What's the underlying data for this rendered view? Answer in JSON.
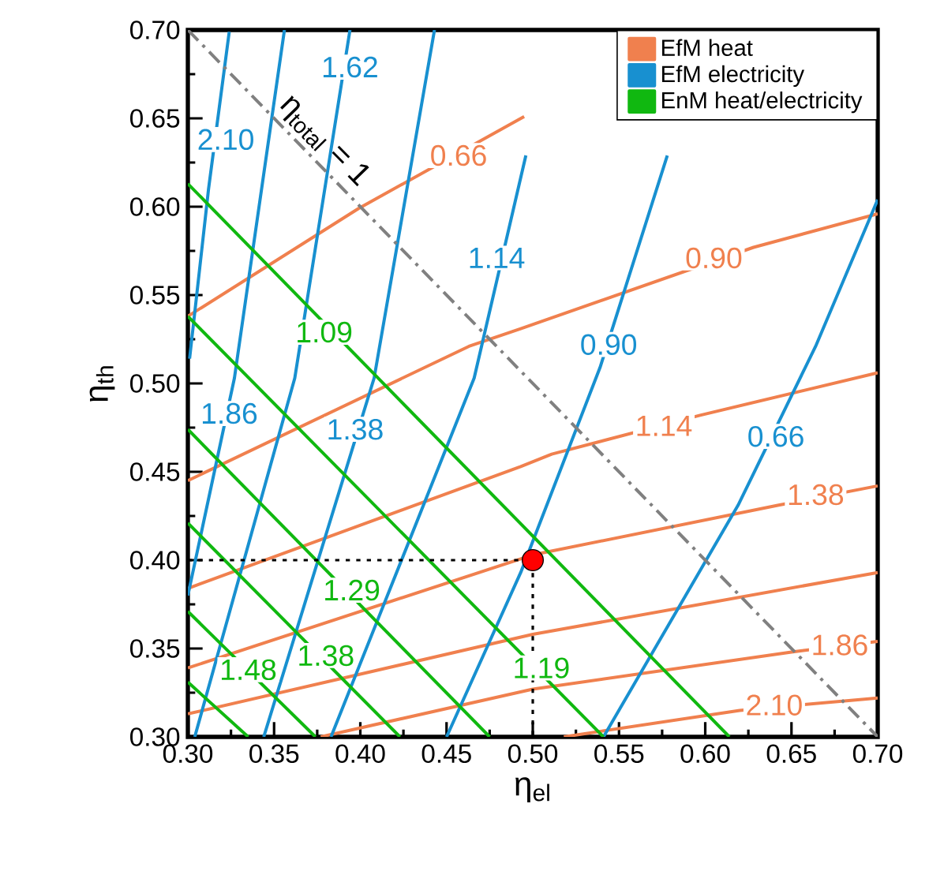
{
  "chart_data": {
    "type": "line",
    "xlabel": "η$_{el}$",
    "ylabel": "η$_{th}$",
    "xlim": [
      0.3,
      0.7
    ],
    "ylim": [
      0.3,
      0.7
    ],
    "xticks": [
      {
        "value": 0.3,
        "label": "0.30"
      },
      {
        "value": 0.35,
        "label": "0.35"
      },
      {
        "value": 0.4,
        "label": "0.40"
      },
      {
        "value": 0.45,
        "label": "0.45"
      },
      {
        "value": 0.5,
        "label": "0.50"
      },
      {
        "value": 0.55,
        "label": "0.55"
      },
      {
        "value": 0.6,
        "label": "0.60"
      },
      {
        "value": 0.65,
        "label": "0.65"
      },
      {
        "value": 0.7,
        "label": "0.70"
      }
    ],
    "yticks": [
      {
        "value": 0.3,
        "label": "0.30"
      },
      {
        "value": 0.35,
        "label": "0.35"
      },
      {
        "value": 0.4,
        "label": "0.40"
      },
      {
        "value": 0.45,
        "label": "0.45"
      },
      {
        "value": 0.5,
        "label": "0.50"
      },
      {
        "value": 0.55,
        "label": "0.55"
      },
      {
        "value": 0.6,
        "label": "0.60"
      },
      {
        "value": 0.65,
        "label": "0.65"
      },
      {
        "value": 0.7,
        "label": "0.70"
      }
    ],
    "legend": "top right",
    "marker": "none",
    "line_style": "solid",
    "series": [
      {
        "name": "EfM heat",
        "color": "#f0804e",
        "x": [
          0.3,
          0.399,
          0.495
        ],
        "values": [
          0.538,
          0.599,
          0.651
        ]
      },
      {
        "color": "#f0804e",
        "x": [
          0.3,
          0.463,
          0.493,
          0.628,
          0.7
        ],
        "values": [
          0.445,
          0.521,
          0.531,
          0.577,
          0.596
        ]
      },
      {
        "color": "#f0804e",
        "x": [
          0.3,
          0.493,
          0.511,
          0.597,
          0.7
        ],
        "values": [
          0.384,
          0.453,
          0.46,
          0.482,
          0.506
        ]
      },
      {
        "color": "#f0804e",
        "x": [
          0.3,
          0.5,
          0.642,
          0.7
        ],
        "values": [
          0.339,
          0.403,
          0.431,
          0.442
        ]
      },
      {
        "color": "#f0804e",
        "x": [
          0.3,
          0.5,
          0.7
        ],
        "values": [
          0.313,
          0.358,
          0.393
        ]
      },
      {
        "color": "#f0804e",
        "x": [
          0.377,
          0.5,
          0.65,
          0.7
        ],
        "values": [
          0.3,
          0.327,
          0.348,
          0.354
        ]
      },
      {
        "color": "#f0804e",
        "x": [
          0.518,
          0.62,
          0.7
        ],
        "values": [
          0.3,
          0.315,
          0.322
        ]
      },
      {
        "name": "EfM electricity",
        "color": "#1890d0",
        "x": [
          0.301,
          0.312,
          0.324
        ],
        "values": [
          0.514,
          0.61,
          0.699
        ]
      },
      {
        "color": "#1890d0",
        "x": [
          0.3,
          0.327,
          0.356
        ],
        "values": [
          0.38,
          0.503,
          0.7
        ]
      },
      {
        "color": "#1890d0",
        "x": [
          0.304,
          0.362,
          0.394
        ],
        "values": [
          0.3,
          0.503,
          0.7
        ]
      },
      {
        "color": "#1890d0",
        "x": [
          0.344,
          0.408,
          0.443
        ],
        "values": [
          0.3,
          0.503,
          0.7
        ]
      },
      {
        "color": "#1890d0",
        "x": [
          0.383,
          0.466,
          0.496
        ],
        "values": [
          0.3,
          0.503,
          0.629
        ]
      },
      {
        "color": "#1890d0",
        "x": [
          0.45,
          0.493,
          0.539,
          0.578
        ],
        "values": [
          0.3,
          0.393,
          0.509,
          0.629
        ]
      },
      {
        "color": "#1890d0",
        "x": [
          0.541,
          0.619,
          0.664,
          0.7
        ],
        "values": [
          0.3,
          0.431,
          0.521,
          0.604
        ]
      },
      {
        "name": "EnM heat/electricity",
        "color": "#10b810",
        "x": [
          0.3,
          0.614
        ],
        "values": [
          0.613,
          0.3
        ]
      },
      {
        "color": "#10b810",
        "x": [
          0.3,
          0.541
        ],
        "values": [
          0.538,
          0.3
        ]
      },
      {
        "color": "#10b810",
        "x": [
          0.3,
          0.475
        ],
        "values": [
          0.474,
          0.3
        ]
      },
      {
        "color": "#10b810",
        "x": [
          0.3,
          0.423
        ],
        "values": [
          0.421,
          0.3
        ]
      },
      {
        "color": "#10b810",
        "x": [
          0.3,
          0.374
        ],
        "values": [
          0.371,
          0.3
        ]
      },
      {
        "color": "#10b810",
        "x": [
          0.3,
          0.335
        ],
        "values": [
          0.331,
          0.3
        ]
      },
      {
        "color": "#808080",
        "line_style": "dashdotted",
        "x": [
          0.3,
          0.7
        ],
        "values": [
          0.7,
          0.3
        ]
      },
      {
        "color": "#000000",
        "line_style": "dotted",
        "x": [
          0.3,
          0.5,
          0.5
        ],
        "values": [
          0.4,
          0.4,
          0.3
        ]
      },
      {
        "type": "scatter",
        "marker": "circle",
        "color": "#ff0000",
        "x": [
          0.5
        ],
        "values": [
          0.4
        ]
      }
    ],
    "annotations": [
      {
        "text": "0.66",
        "x": 0.457,
        "y": 0.629
      },
      {
        "text": "0.90",
        "x": 0.605,
        "y": 0.571
      },
      {
        "text": "1.14",
        "x": 0.576,
        "y": 0.476
      },
      {
        "text": "1.38",
        "x": 0.664,
        "y": 0.437
      },
      {
        "text": "1.86",
        "x": 0.678,
        "y": 0.352
      },
      {
        "text": "2.10",
        "x": 0.64,
        "y": 0.318
      },
      {
        "text": "2.10",
        "x": 0.322,
        "y": 0.638
      },
      {
        "text": "1.62",
        "x": 0.394,
        "y": 0.679
      },
      {
        "text": "1.86",
        "x": 0.324,
        "y": 0.483
      },
      {
        "text": "1.38",
        "x": 0.397,
        "y": 0.474
      },
      {
        "text": "1.14",
        "x": 0.479,
        "y": 0.571
      },
      {
        "text": "0.90",
        "x": 0.544,
        "y": 0.522
      },
      {
        "text": "0.66",
        "x": 0.641,
        "y": 0.47
      },
      {
        "text": "1.09",
        "x": 0.379,
        "y": 0.529
      },
      {
        "text": "1.19",
        "x": 0.505,
        "y": 0.339
      },
      {
        "text": "1.29",
        "x": 0.395,
        "y": 0.383
      },
      {
        "text": "1.38",
        "x": 0.38,
        "y": 0.346
      },
      {
        "text": "1.48",
        "x": 0.335,
        "y": 0.338
      },
      "η$_{total}$ = 1"
    ]
  }
}
